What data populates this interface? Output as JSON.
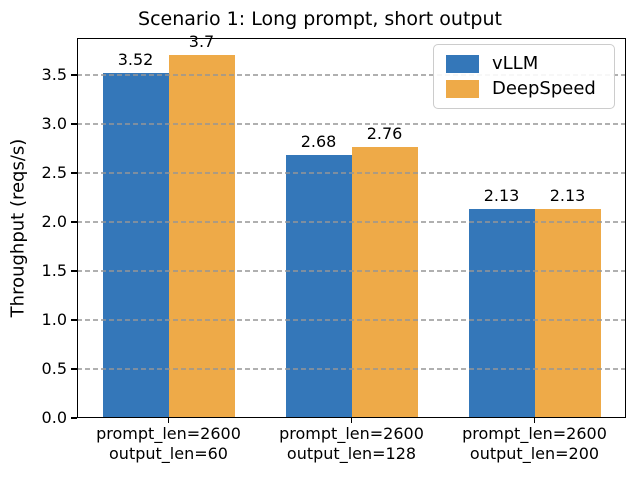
{
  "chart_data": {
    "type": "bar",
    "title": "Scenario 1: Long prompt, short output",
    "xlabel": "",
    "ylabel": "Throughput (reqs/s)",
    "categories": [
      [
        "prompt_len=2600",
        "output_len=60"
      ],
      [
        "prompt_len=2600",
        "output_len=128"
      ],
      [
        "prompt_len=2600",
        "output_len=200"
      ]
    ],
    "series": [
      {
        "name": "vLLM",
        "color": "#3477b9",
        "values": [
          3.52,
          2.68,
          2.13
        ],
        "value_labels": [
          "3.52",
          "2.68",
          "2.13"
        ]
      },
      {
        "name": "DeepSpeed",
        "color": "#eeaa48",
        "values": [
          3.7,
          2.76,
          2.13
        ],
        "value_labels": [
          "3.7",
          "2.76",
          "2.13"
        ]
      }
    ],
    "ylim": [
      0,
      3.877
    ],
    "yticks": [
      0.0,
      0.5,
      1.0,
      1.5,
      2.0,
      2.5,
      3.0,
      3.5
    ],
    "ytick_labels": [
      "0.0",
      "0.5",
      "1.0",
      "1.5",
      "2.0",
      "2.5",
      "3.0",
      "3.5"
    ],
    "grid": "horizontal-dashed-over-bars",
    "legend_position": "upper right",
    "colors": {
      "frame": "#000000",
      "gridline": "#969696",
      "legend_border": "#cccccc"
    }
  }
}
